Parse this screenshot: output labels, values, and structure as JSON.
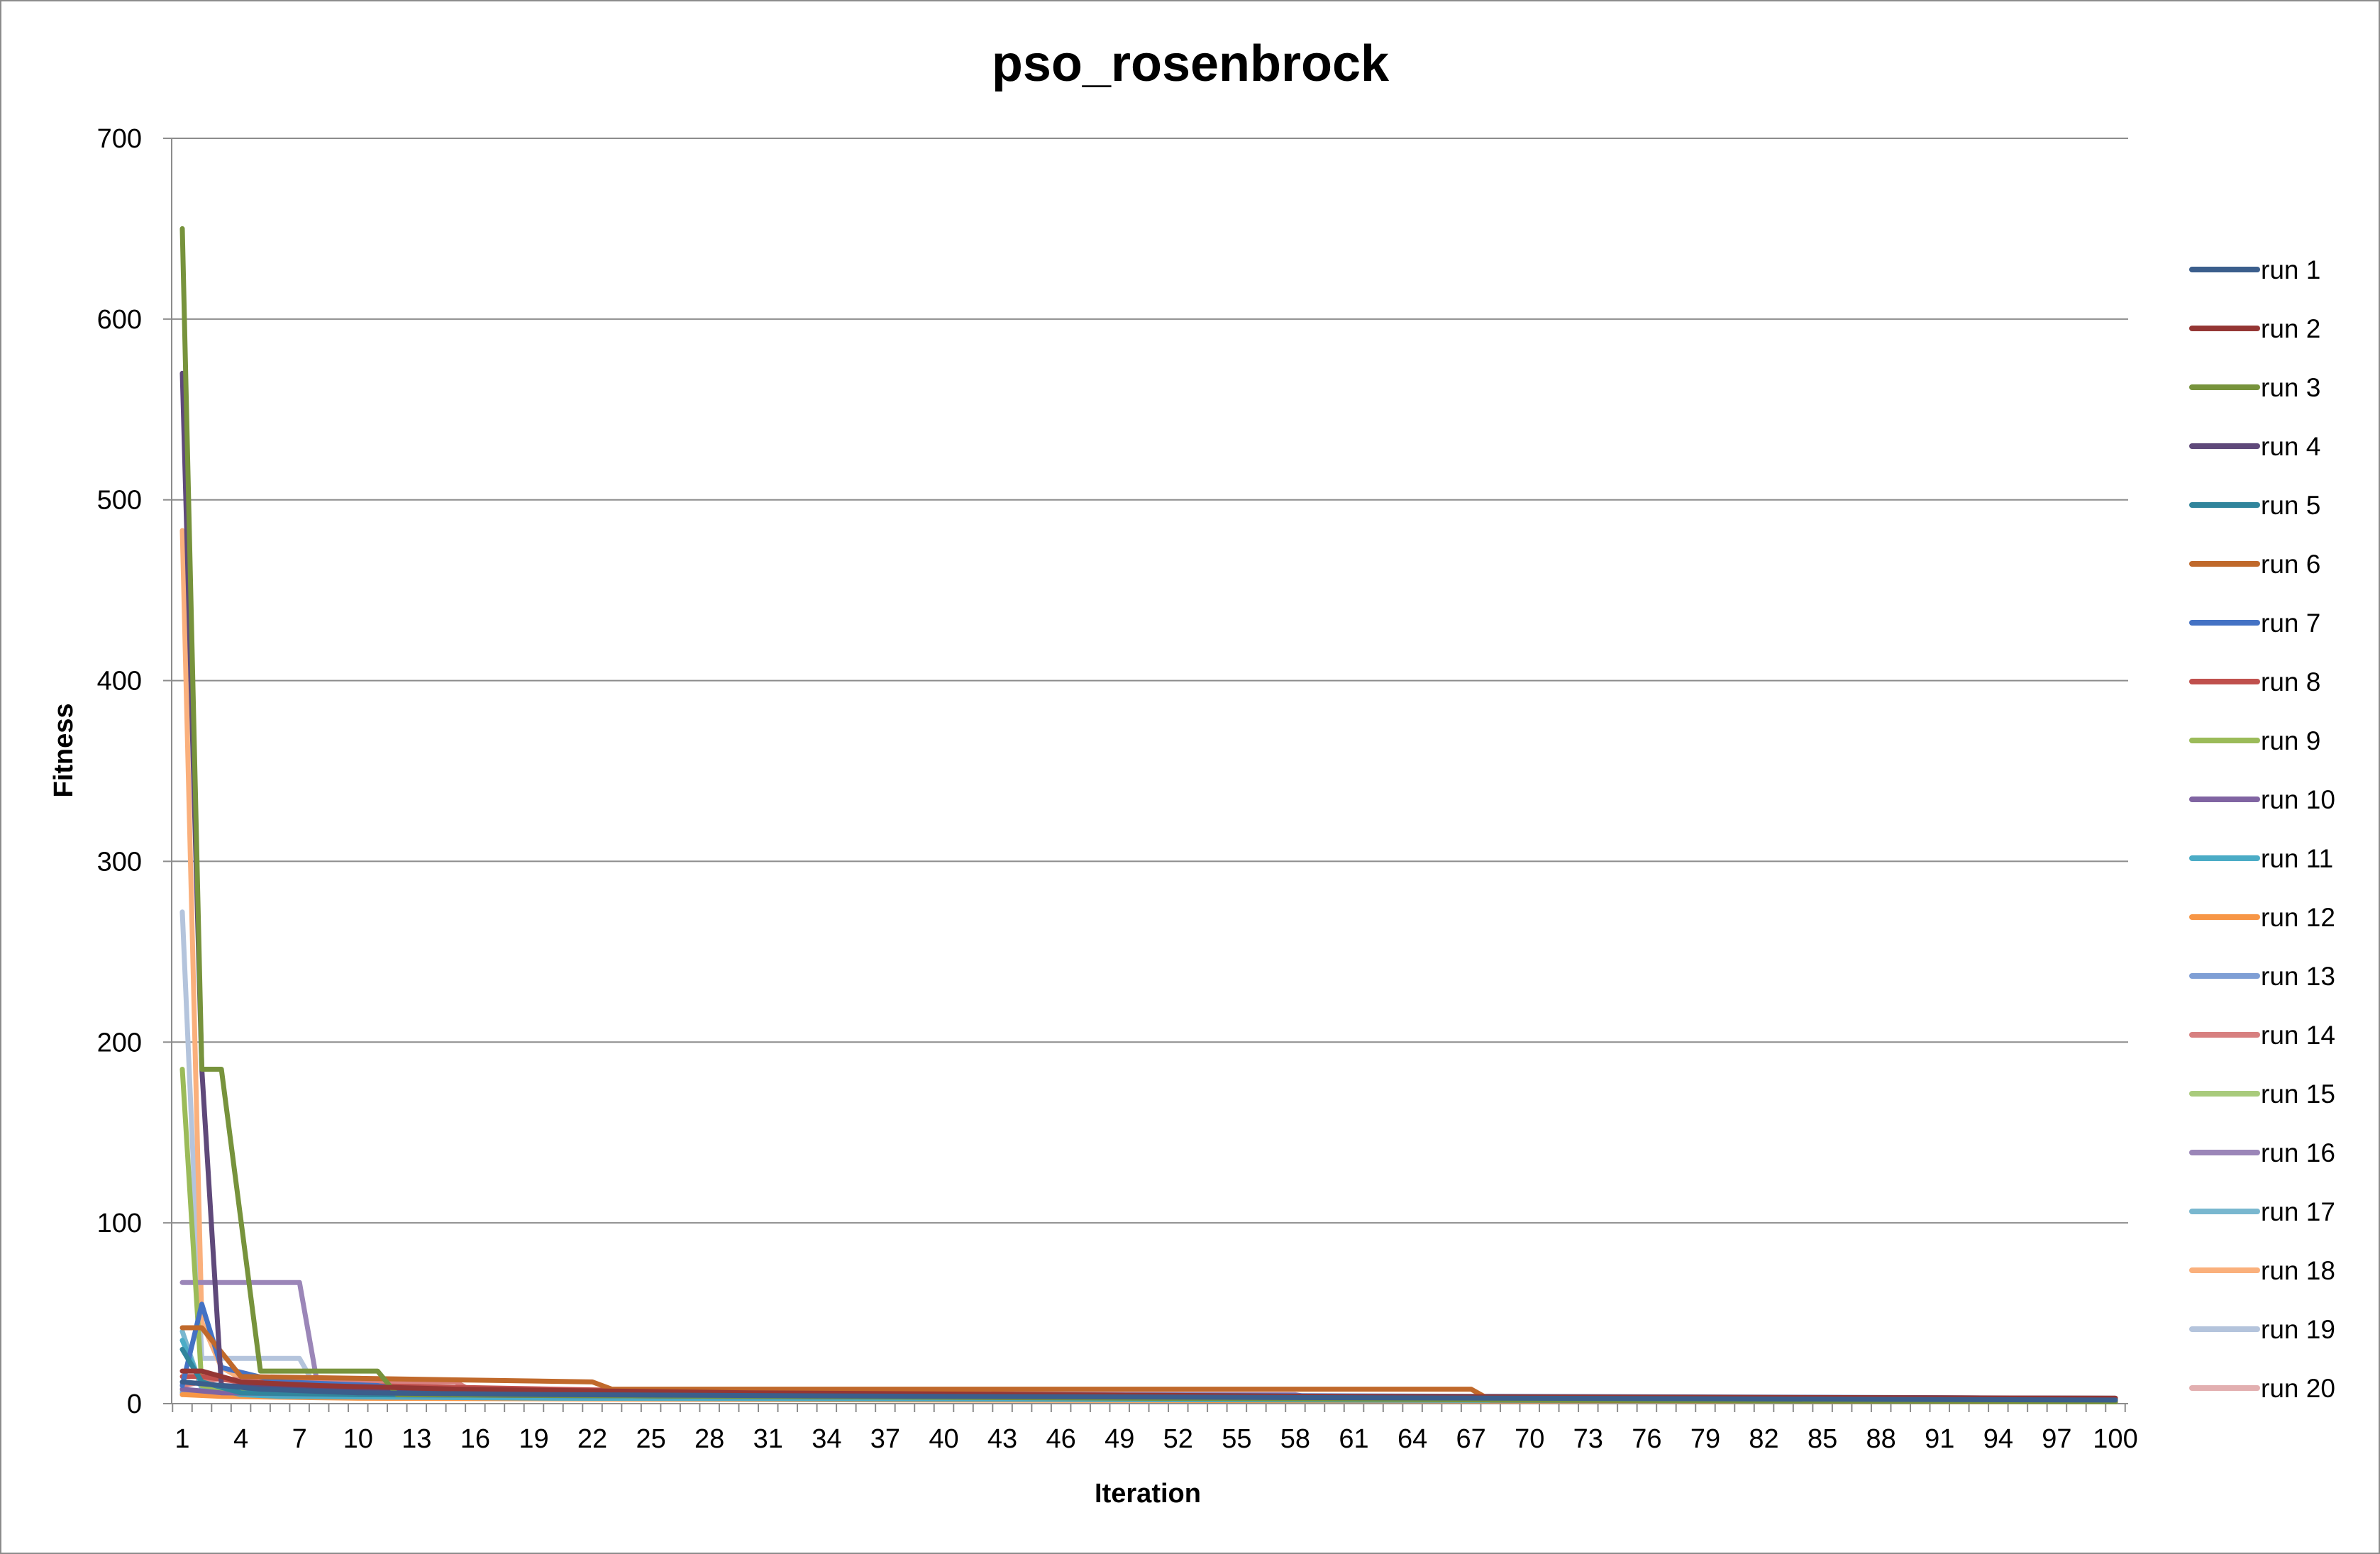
{
  "chart_data": {
    "type": "line",
    "title": "pso_rosenbrock",
    "xlabel": "Iteration",
    "ylabel": "Fitness",
    "ylim": [
      0,
      700
    ],
    "y_ticks": [
      0,
      100,
      200,
      300,
      400,
      500,
      600,
      700
    ],
    "x_range": [
      1,
      100
    ],
    "x_tick_labels": [
      1,
      4,
      7,
      10,
      13,
      16,
      19,
      22,
      25,
      28,
      31,
      34,
      37,
      40,
      43,
      46,
      49,
      52,
      55,
      58,
      61,
      64,
      67,
      70,
      73,
      76,
      79,
      82,
      85,
      88,
      91,
      94,
      97,
      100
    ],
    "grid": "horizontal",
    "legend_position": "right",
    "series": [
      {
        "name": "run 1",
        "color": "#3b5e8c",
        "points": [
          [
            1,
            12
          ],
          [
            3,
            10
          ],
          [
            5,
            8
          ],
          [
            10,
            6
          ],
          [
            20,
            5
          ],
          [
            40,
            4
          ],
          [
            70,
            3
          ],
          [
            100,
            2
          ]
        ]
      },
      {
        "name": "run 2",
        "color": "#943634",
        "points": [
          [
            1,
            18
          ],
          [
            2,
            18
          ],
          [
            4,
            12
          ],
          [
            8,
            10
          ],
          [
            15,
            8
          ],
          [
            30,
            6
          ],
          [
            60,
            4
          ],
          [
            100,
            3
          ]
        ]
      },
      {
        "name": "run 3",
        "color": "#77933c",
        "points": [
          [
            1,
            650
          ],
          [
            2,
            185
          ],
          [
            3,
            185
          ],
          [
            5,
            18
          ],
          [
            11,
            18
          ],
          [
            12,
            5
          ],
          [
            30,
            4
          ],
          [
            70,
            2
          ],
          [
            100,
            1
          ]
        ]
      },
      {
        "name": "run 4",
        "color": "#5f497a",
        "points": [
          [
            1,
            570
          ],
          [
            2,
            185
          ],
          [
            3,
            10
          ],
          [
            8,
            8
          ],
          [
            20,
            6
          ],
          [
            50,
            4
          ],
          [
            90,
            2
          ],
          [
            100,
            1
          ]
        ]
      },
      {
        "name": "run 5",
        "color": "#31859c",
        "points": [
          [
            1,
            30
          ],
          [
            2,
            12
          ],
          [
            4,
            6
          ],
          [
            10,
            5
          ],
          [
            30,
            4
          ],
          [
            70,
            3
          ],
          [
            100,
            2
          ]
        ]
      },
      {
        "name": "run 6",
        "color": "#c0692b",
        "points": [
          [
            1,
            42
          ],
          [
            2,
            42
          ],
          [
            4,
            15
          ],
          [
            22,
            12
          ],
          [
            23,
            8
          ],
          [
            67,
            8
          ],
          [
            68,
            2
          ],
          [
            100,
            1
          ]
        ]
      },
      {
        "name": "run 7",
        "color": "#4472c4",
        "points": [
          [
            1,
            10
          ],
          [
            2,
            55
          ],
          [
            3,
            20
          ],
          [
            6,
            12
          ],
          [
            11,
            10
          ],
          [
            12,
            8
          ],
          [
            40,
            5
          ],
          [
            100,
            3
          ]
        ]
      },
      {
        "name": "run 8",
        "color": "#c0504d",
        "points": [
          [
            1,
            15
          ],
          [
            2,
            15
          ],
          [
            4,
            12
          ],
          [
            10,
            10
          ],
          [
            30,
            6
          ],
          [
            60,
            4
          ],
          [
            100,
            3
          ]
        ]
      },
      {
        "name": "run 9",
        "color": "#9bbb59",
        "points": [
          [
            1,
            185
          ],
          [
            2,
            10
          ],
          [
            5,
            6
          ],
          [
            20,
            5
          ],
          [
            50,
            4
          ],
          [
            100,
            3
          ]
        ]
      },
      {
        "name": "run 10",
        "color": "#8064a2",
        "points": [
          [
            1,
            8
          ],
          [
            3,
            6
          ],
          [
            10,
            5
          ],
          [
            30,
            4
          ],
          [
            60,
            3
          ],
          [
            100,
            2
          ]
        ]
      },
      {
        "name": "run 11",
        "color": "#4bacc6",
        "points": [
          [
            1,
            35
          ],
          [
            2,
            10
          ],
          [
            4,
            5
          ],
          [
            6,
            4
          ],
          [
            20,
            3
          ],
          [
            60,
            2
          ],
          [
            100,
            1
          ]
        ]
      },
      {
        "name": "run 12",
        "color": "#f79646",
        "points": [
          [
            1,
            5
          ],
          [
            3,
            4
          ],
          [
            10,
            3
          ],
          [
            40,
            2
          ],
          [
            100,
            1
          ]
        ]
      },
      {
        "name": "run 13",
        "color": "#7f9fd5",
        "points": [
          [
            1,
            6
          ],
          [
            4,
            5
          ],
          [
            15,
            4
          ],
          [
            50,
            3
          ],
          [
            100,
            2
          ]
        ]
      },
      {
        "name": "run 14",
        "color": "#d78080",
        "points": [
          [
            1,
            10
          ],
          [
            3,
            14
          ],
          [
            5,
            12
          ],
          [
            15,
            12
          ],
          [
            16,
            6
          ],
          [
            40,
            4
          ],
          [
            100,
            2
          ]
        ]
      },
      {
        "name": "run 15",
        "color": "#a9cb7c",
        "points": [
          [
            1,
            7
          ],
          [
            4,
            6
          ],
          [
            12,
            5
          ],
          [
            40,
            3
          ],
          [
            100,
            2
          ]
        ]
      },
      {
        "name": "run 16",
        "color": "#9b86b8",
        "points": [
          [
            1,
            67
          ],
          [
            2,
            67
          ],
          [
            3,
            67
          ],
          [
            7,
            67
          ],
          [
            8,
            6
          ],
          [
            58,
            5
          ],
          [
            59,
            3
          ],
          [
            100,
            2
          ]
        ]
      },
      {
        "name": "run 17",
        "color": "#79b7cf",
        "points": [
          [
            1,
            40
          ],
          [
            2,
            8
          ],
          [
            6,
            5
          ],
          [
            20,
            4
          ],
          [
            60,
            3
          ],
          [
            100,
            2
          ]
        ]
      },
      {
        "name": "run 18",
        "color": "#fab07c",
        "points": [
          [
            1,
            483
          ],
          [
            2,
            45
          ],
          [
            3,
            20
          ],
          [
            5,
            8
          ],
          [
            6,
            4
          ],
          [
            30,
            3
          ],
          [
            100,
            1
          ]
        ]
      },
      {
        "name": "run 19",
        "color": "#b4c4dc",
        "points": [
          [
            1,
            272
          ],
          [
            2,
            25
          ],
          [
            7,
            25
          ],
          [
            8,
            6
          ],
          [
            30,
            5
          ],
          [
            60,
            3
          ],
          [
            100,
            2
          ]
        ]
      },
      {
        "name": "run 20",
        "color": "#e2afb0",
        "points": [
          [
            1,
            5
          ],
          [
            3,
            8
          ],
          [
            10,
            6
          ],
          [
            28,
            5
          ],
          [
            29,
            3
          ],
          [
            70,
            2
          ],
          [
            100,
            1
          ]
        ]
      }
    ]
  }
}
